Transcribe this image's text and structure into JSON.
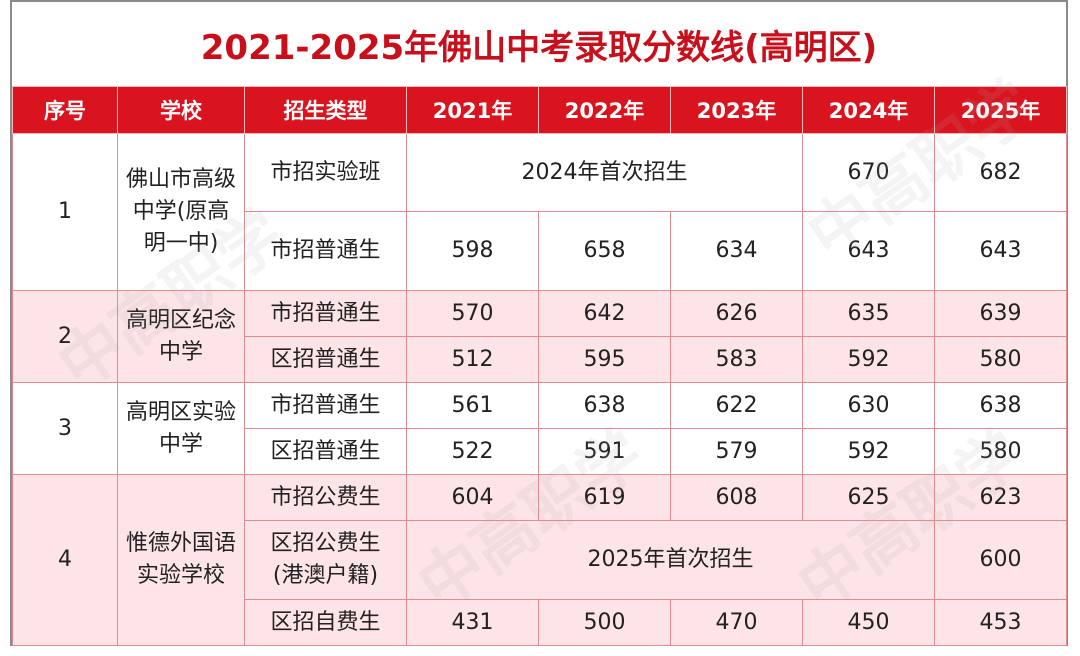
{
  "title": "2021-2025年佛山中考录取分数线(高明区)",
  "headers": [
    "序号",
    "学校",
    "招生类型",
    "2021年",
    "2022年",
    "2023年",
    "2024年",
    "2025年"
  ],
  "schools": [
    {
      "no": "1",
      "name": "佛山市高级中学(原高明一中)",
      "rows": [
        {
          "type": "市招实验班",
          "note": "2024年首次招生",
          "y2024": "670",
          "y2025": "682"
        },
        {
          "type": "市招普通生",
          "y2021": "598",
          "y2022": "658",
          "y2023": "634",
          "y2024": "643",
          "y2025": "643"
        }
      ]
    },
    {
      "no": "2",
      "name": "高明区纪念中学",
      "rows": [
        {
          "type": "市招普通生",
          "y2021": "570",
          "y2022": "642",
          "y2023": "626",
          "y2024": "635",
          "y2025": "639"
        },
        {
          "type": "区招普通生",
          "y2021": "512",
          "y2022": "595",
          "y2023": "583",
          "y2024": "592",
          "y2025": "580"
        }
      ]
    },
    {
      "no": "3",
      "name": "高明区实验中学",
      "rows": [
        {
          "type": "市招普通生",
          "y2021": "561",
          "y2022": "638",
          "y2023": "622",
          "y2024": "630",
          "y2025": "638"
        },
        {
          "type": "区招普通生",
          "y2021": "522",
          "y2022": "591",
          "y2023": "579",
          "y2024": "592",
          "y2025": "580"
        }
      ]
    },
    {
      "no": "4",
      "name": "惟德外国语实验学校",
      "rows": [
        {
          "type": "市招公费生",
          "y2021": "604",
          "y2022": "619",
          "y2023": "608",
          "y2024": "625",
          "y2025": "623"
        },
        {
          "type": "区招公费生(港澳户籍)",
          "note": "2025年首次招生",
          "y2025": "600"
        },
        {
          "type": "区招自费生",
          "y2021": "431",
          "y2022": "500",
          "y2023": "470",
          "y2024": "450",
          "y2025": "453"
        }
      ]
    }
  ],
  "watermark_text": "中高职学",
  "colors": {
    "title": "#c8101c",
    "header_bg": "#d9141f",
    "header_text": "#ffffff",
    "pink_row": "#fde4e6",
    "border": "#e08a92"
  }
}
